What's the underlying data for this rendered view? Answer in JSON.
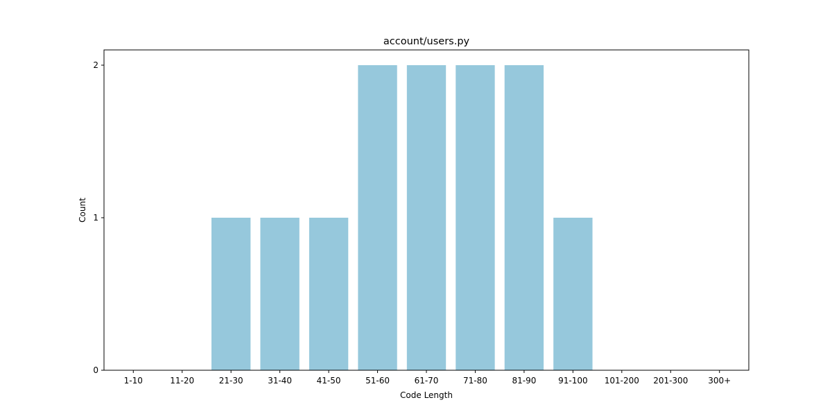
{
  "chart_data": {
    "type": "bar",
    "title": "account/users.py",
    "xlabel": "Code Length",
    "ylabel": "Count",
    "categories": [
      "1-10",
      "11-20",
      "21-30",
      "31-40",
      "41-50",
      "51-60",
      "61-70",
      "71-80",
      "81-90",
      "91-100",
      "101-200",
      "201-300",
      "300+"
    ],
    "values": [
      0,
      0,
      1,
      1,
      1,
      2,
      2,
      2,
      2,
      1,
      0,
      0,
      0
    ],
    "ylim": [
      0,
      2.1
    ],
    "yticks": [
      0,
      1,
      2
    ],
    "bar_color": "#96c8dc",
    "grid": false,
    "legend": "none"
  }
}
